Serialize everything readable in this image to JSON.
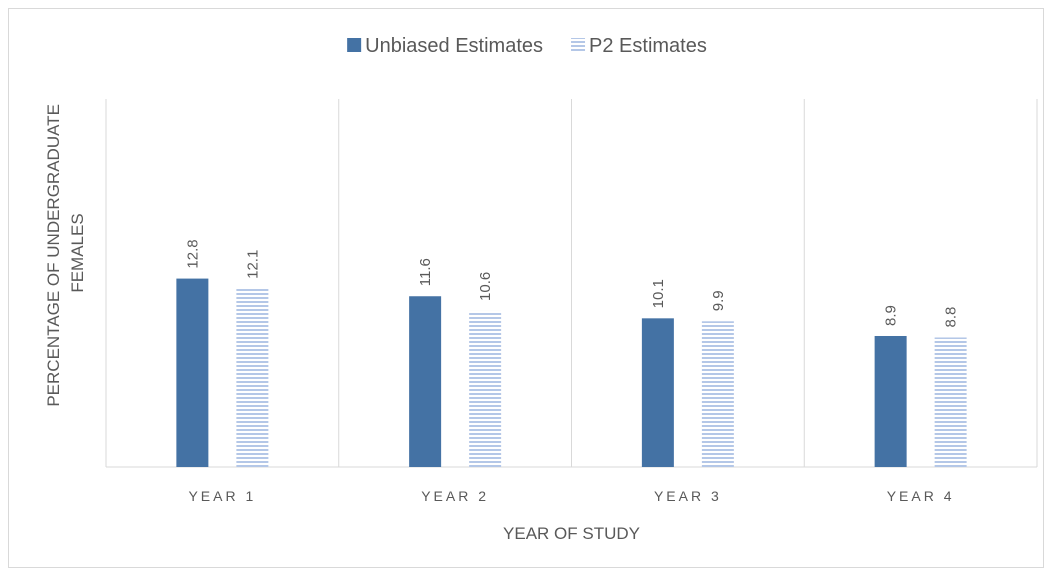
{
  "chart_data": {
    "type": "bar",
    "categories": [
      "YEAR 1",
      "YEAR 2",
      "YEAR 3",
      "YEAR 4"
    ],
    "series": [
      {
        "name": "Unbiased Estimates",
        "values": [
          12.8,
          11.6,
          10.1,
          8.9
        ],
        "color": "#4472a4",
        "pattern": "solid"
      },
      {
        "name": "P2 Estimates",
        "values": [
          12.1,
          10.6,
          9.9,
          8.8
        ],
        "color": "#b4c7e7",
        "pattern": "horizontal-stripes"
      }
    ],
    "xlabel": "YEAR OF STUDY",
    "ylabel_lines": [
      "PERCENTAGE OF UNDERGRADUATE",
      "FEMALES"
    ],
    "ylim": [
      0,
      25
    ],
    "gridlines": "vertical-category-separators",
    "legend_position": "top-center",
    "data_labels_rotated": true
  }
}
